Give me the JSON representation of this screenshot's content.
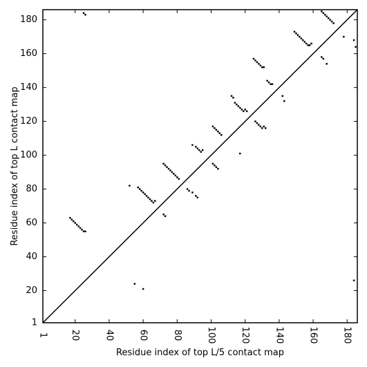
{
  "chart_data": {
    "type": "scatter",
    "title": "",
    "xlabel": "Residue index of top L/5 contact map",
    "ylabel": "Residue index of top L contact map",
    "xlim": [
      1,
      186
    ],
    "ylim": [
      1,
      186
    ],
    "xticks": [
      1,
      20,
      40,
      60,
      80,
      100,
      120,
      140,
      160,
      180
    ],
    "yticks": [
      1,
      20,
      40,
      60,
      80,
      100,
      120,
      140,
      160,
      180
    ],
    "xtick_labels": [
      "1",
      "20",
      "40",
      "60",
      "80",
      "100",
      "120",
      "140",
      "160",
      "180"
    ],
    "ytick_labels": [
      "1",
      "20",
      "40",
      "60",
      "80",
      "100",
      "120",
      "140",
      "160",
      "180"
    ],
    "diagonal": true,
    "grid": false,
    "marker_color": "#000000",
    "upper_triangle_points": [
      [
        25,
        184
      ],
      [
        26,
        183
      ],
      [
        149,
        173
      ],
      [
        150,
        172
      ],
      [
        151,
        171
      ],
      [
        152,
        170
      ],
      [
        153,
        169
      ],
      [
        154,
        168
      ],
      [
        155,
        167
      ],
      [
        156,
        166
      ],
      [
        157,
        165
      ],
      [
        158,
        165
      ],
      [
        159,
        166
      ],
      [
        165,
        185
      ],
      [
        166,
        184
      ],
      [
        167,
        183
      ],
      [
        168,
        182
      ],
      [
        169,
        181
      ],
      [
        170,
        180
      ],
      [
        171,
        179
      ],
      [
        172,
        178
      ],
      [
        165,
        158
      ],
      [
        166,
        157
      ],
      [
        168,
        154
      ],
      [
        142,
        135
      ],
      [
        143,
        132
      ],
      [
        125,
        157
      ],
      [
        126,
        156
      ],
      [
        127,
        155
      ],
      [
        128,
        154
      ],
      [
        129,
        153
      ],
      [
        130,
        152
      ],
      [
        131,
        152
      ],
      [
        133,
        144
      ],
      [
        134,
        143
      ],
      [
        135,
        142
      ],
      [
        136,
        142
      ],
      [
        112,
        135
      ],
      [
        113,
        134
      ],
      [
        114,
        131
      ],
      [
        115,
        130
      ],
      [
        116,
        129
      ],
      [
        117,
        128
      ],
      [
        118,
        127
      ],
      [
        119,
        126
      ],
      [
        120,
        127
      ],
      [
        121,
        126
      ],
      [
        126,
        120
      ],
      [
        127,
        119
      ],
      [
        128,
        118
      ],
      [
        129,
        117
      ],
      [
        130,
        116
      ],
      [
        131,
        117
      ],
      [
        132,
        116
      ],
      [
        117,
        101
      ],
      [
        101,
        117
      ],
      [
        102,
        116
      ],
      [
        103,
        115
      ],
      [
        104,
        114
      ],
      [
        105,
        113
      ],
      [
        106,
        112
      ],
      [
        89,
        106
      ],
      [
        91,
        105
      ],
      [
        92,
        104
      ],
      [
        93,
        103
      ],
      [
        94,
        102
      ],
      [
        95,
        103
      ],
      [
        101,
        95
      ],
      [
        102,
        94
      ],
      [
        103,
        93
      ],
      [
        104,
        92
      ],
      [
        72,
        95
      ],
      [
        73,
        94
      ],
      [
        74,
        93
      ],
      [
        75,
        92
      ],
      [
        76,
        91
      ],
      [
        77,
        90
      ],
      [
        78,
        89
      ],
      [
        79,
        88
      ],
      [
        80,
        87
      ],
      [
        81,
        86
      ],
      [
        86,
        80
      ],
      [
        87,
        79
      ],
      [
        89,
        78
      ],
      [
        91,
        76
      ],
      [
        92,
        75
      ],
      [
        52,
        82
      ],
      [
        57,
        81
      ],
      [
        58,
        80
      ],
      [
        59,
        79
      ],
      [
        60,
        78
      ],
      [
        61,
        77
      ],
      [
        62,
        76
      ],
      [
        63,
        75
      ],
      [
        64,
        74
      ],
      [
        65,
        73
      ],
      [
        66,
        72
      ],
      [
        67,
        73
      ],
      [
        72,
        65
      ],
      [
        73,
        64
      ],
      [
        17,
        63
      ],
      [
        18,
        62
      ],
      [
        19,
        61
      ],
      [
        20,
        60
      ],
      [
        21,
        59
      ],
      [
        22,
        58
      ],
      [
        23,
        57
      ],
      [
        24,
        56
      ],
      [
        25,
        55
      ],
      [
        26,
        55
      ],
      [
        55,
        24
      ],
      [
        60,
        21
      ],
      [
        178,
        170
      ],
      [
        184,
        168
      ],
      [
        185,
        164
      ],
      [
        184,
        26
      ]
    ],
    "lower_triangle_points": []
  }
}
